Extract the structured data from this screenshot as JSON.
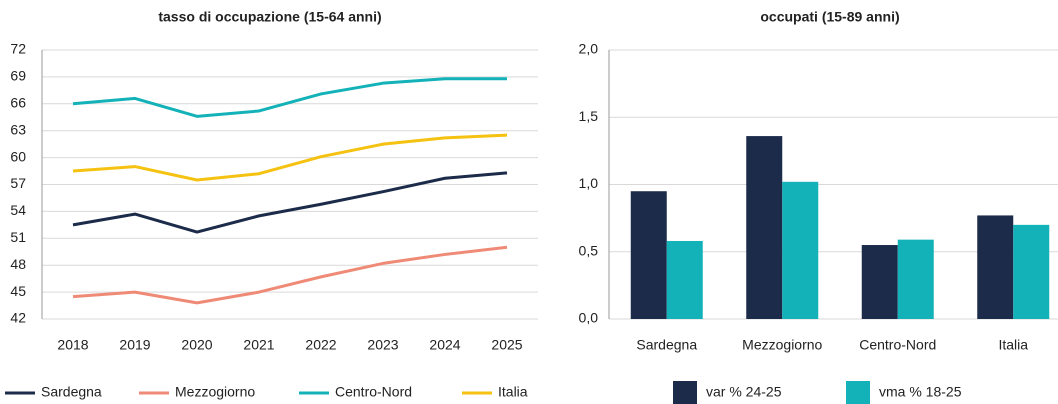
{
  "chart_data": [
    {
      "type": "line",
      "title": "tasso di occupazione (15-64 anni)",
      "categories": [
        "2018",
        "2019",
        "2020",
        "2021",
        "2022",
        "2023",
        "2024",
        "2025"
      ],
      "series": [
        {
          "name": "Sardegna",
          "color": "#1c2b4a",
          "values": [
            52.5,
            53.7,
            51.7,
            53.5,
            54.8,
            56.2,
            57.7,
            58.3
          ]
        },
        {
          "name": "Mezzogiorno",
          "color": "#ee8a76",
          "values": [
            44.5,
            45.0,
            43.8,
            45.0,
            46.7,
            48.2,
            49.2,
            50.0
          ]
        },
        {
          "name": "Centro-Nord",
          "color": "#13b2b8",
          "values": [
            66.0,
            66.6,
            64.6,
            65.2,
            67.1,
            68.3,
            68.8,
            68.8
          ]
        },
        {
          "name": "Italia",
          "color": "#f5c211",
          "values": [
            58.5,
            59.0,
            57.5,
            58.2,
            60.1,
            61.5,
            62.2,
            62.5
          ]
        }
      ],
      "ylim": [
        42,
        72
      ],
      "yticks": [
        42,
        45,
        48,
        51,
        54,
        57,
        60,
        63,
        66,
        69,
        72
      ],
      "grid": true
    },
    {
      "type": "bar",
      "title": "occupati (15-89 anni)",
      "categories": [
        "Sardegna",
        "Mezzogiorno",
        "Centro-Nord",
        "Italia"
      ],
      "series": [
        {
          "name": "var % 24-25",
          "color": "#1c2b4a",
          "values": [
            0.95,
            1.36,
            0.55,
            0.77
          ]
        },
        {
          "name": "vma % 18-25",
          "color": "#13b2b8",
          "values": [
            0.58,
            1.02,
            0.59,
            0.7
          ]
        }
      ],
      "ylim": [
        0,
        2
      ],
      "yticks": [
        {
          "value": 0,
          "label": "0,0"
        },
        {
          "value": 0.5,
          "label": "0,5"
        },
        {
          "value": 1,
          "label": "1,0"
        },
        {
          "value": 1.5,
          "label": "1,5"
        },
        {
          "value": 2,
          "label": "2,0"
        }
      ],
      "grid": true
    }
  ]
}
